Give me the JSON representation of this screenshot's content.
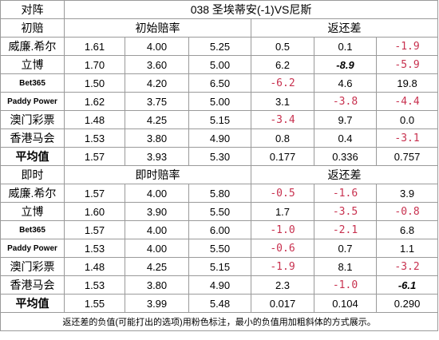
{
  "header": {
    "corner_label": "对阵",
    "match_title": "038  圣埃蒂安(-1)VS尼斯"
  },
  "sections": [
    {
      "label": "初赔",
      "odds_header": "初始赔率",
      "return_header": "返还差",
      "rows": [
        {
          "company": "威廉.希尔",
          "odds": [
            "1.61",
            "4.00",
            "5.25"
          ],
          "diff": [
            "0.5",
            "0.1",
            "-1.9"
          ],
          "neg": [
            false,
            false,
            true
          ],
          "min": [
            false,
            false,
            false
          ]
        },
        {
          "company": "立博",
          "odds": [
            "1.70",
            "3.60",
            "5.00"
          ],
          "diff": [
            "6.2",
            "-8.9",
            "-5.9"
          ],
          "neg": [
            false,
            true,
            true
          ],
          "min": [
            false,
            true,
            false
          ]
        },
        {
          "company": "Bet365",
          "odds": [
            "1.50",
            "4.20",
            "6.50"
          ],
          "diff": [
            "-6.2",
            "4.6",
            "19.8"
          ],
          "neg": [
            true,
            false,
            false
          ],
          "min": [
            false,
            false,
            false
          ]
        },
        {
          "company": "Paddy Power",
          "odds": [
            "1.62",
            "3.75",
            "5.00"
          ],
          "diff": [
            "3.1",
            "-3.8",
            "-4.4"
          ],
          "neg": [
            false,
            true,
            true
          ],
          "min": [
            false,
            false,
            false
          ]
        },
        {
          "company": "澳门彩票",
          "odds": [
            "1.48",
            "4.25",
            "5.15"
          ],
          "diff": [
            "-3.4",
            "9.7",
            "0.0"
          ],
          "neg": [
            true,
            false,
            false
          ],
          "min": [
            false,
            false,
            false
          ]
        },
        {
          "company": "香港马会",
          "odds": [
            "1.53",
            "3.80",
            "4.90"
          ],
          "diff": [
            "0.8",
            "0.4",
            "-3.1"
          ],
          "neg": [
            false,
            false,
            true
          ],
          "min": [
            false,
            false,
            false
          ]
        }
      ],
      "average": {
        "label": "平均值",
        "odds": [
          "1.57",
          "3.93",
          "5.30"
        ],
        "diff": [
          "0.177",
          "0.336",
          "0.757"
        ]
      }
    },
    {
      "label": "即时",
      "odds_header": "即时赔率",
      "return_header": "返还差",
      "rows": [
        {
          "company": "威廉.希尔",
          "odds": [
            "1.57",
            "4.00",
            "5.80"
          ],
          "diff": [
            "-0.5",
            "-1.6",
            "3.9"
          ],
          "neg": [
            true,
            true,
            false
          ],
          "min": [
            false,
            false,
            false
          ]
        },
        {
          "company": "立博",
          "odds": [
            "1.60",
            "3.90",
            "5.50"
          ],
          "diff": [
            "1.7",
            "-3.5",
            "-0.8"
          ],
          "neg": [
            false,
            true,
            true
          ],
          "min": [
            false,
            false,
            false
          ]
        },
        {
          "company": "Bet365",
          "odds": [
            "1.57",
            "4.00",
            "6.00"
          ],
          "diff": [
            "-1.0",
            "-2.1",
            "6.8"
          ],
          "neg": [
            true,
            true,
            false
          ],
          "min": [
            false,
            false,
            false
          ]
        },
        {
          "company": "Paddy Power",
          "odds": [
            "1.53",
            "4.00",
            "5.50"
          ],
          "diff": [
            "-0.6",
            "0.7",
            "1.1"
          ],
          "neg": [
            true,
            false,
            false
          ],
          "min": [
            false,
            false,
            false
          ]
        },
        {
          "company": "澳门彩票",
          "odds": [
            "1.48",
            "4.25",
            "5.15"
          ],
          "diff": [
            "-1.9",
            "8.1",
            "-3.2"
          ],
          "neg": [
            true,
            false,
            true
          ],
          "min": [
            false,
            false,
            false
          ]
        },
        {
          "company": "香港马会",
          "odds": [
            "1.53",
            "3.80",
            "4.90"
          ],
          "diff": [
            "2.3",
            "-1.0",
            "-6.1"
          ],
          "neg": [
            false,
            true,
            true
          ],
          "min": [
            false,
            false,
            true
          ]
        }
      ],
      "average": {
        "label": "平均值",
        "odds": [
          "1.55",
          "3.99",
          "5.48"
        ],
        "diff": [
          "0.017",
          "0.104",
          "0.290"
        ]
      }
    }
  ],
  "footnote": "返还差的负值(可能打出的选项)用粉色标注，最小的负值用加粗斜体的方式展示。",
  "colors": {
    "header_bg": "#ffff9a",
    "average_bg": "#9bd24f",
    "negative_bg": "#fccfd6",
    "negative_text": "#c8314f",
    "min_highlight_bg": "#f5b07e",
    "border": "#9a9a9a"
  }
}
